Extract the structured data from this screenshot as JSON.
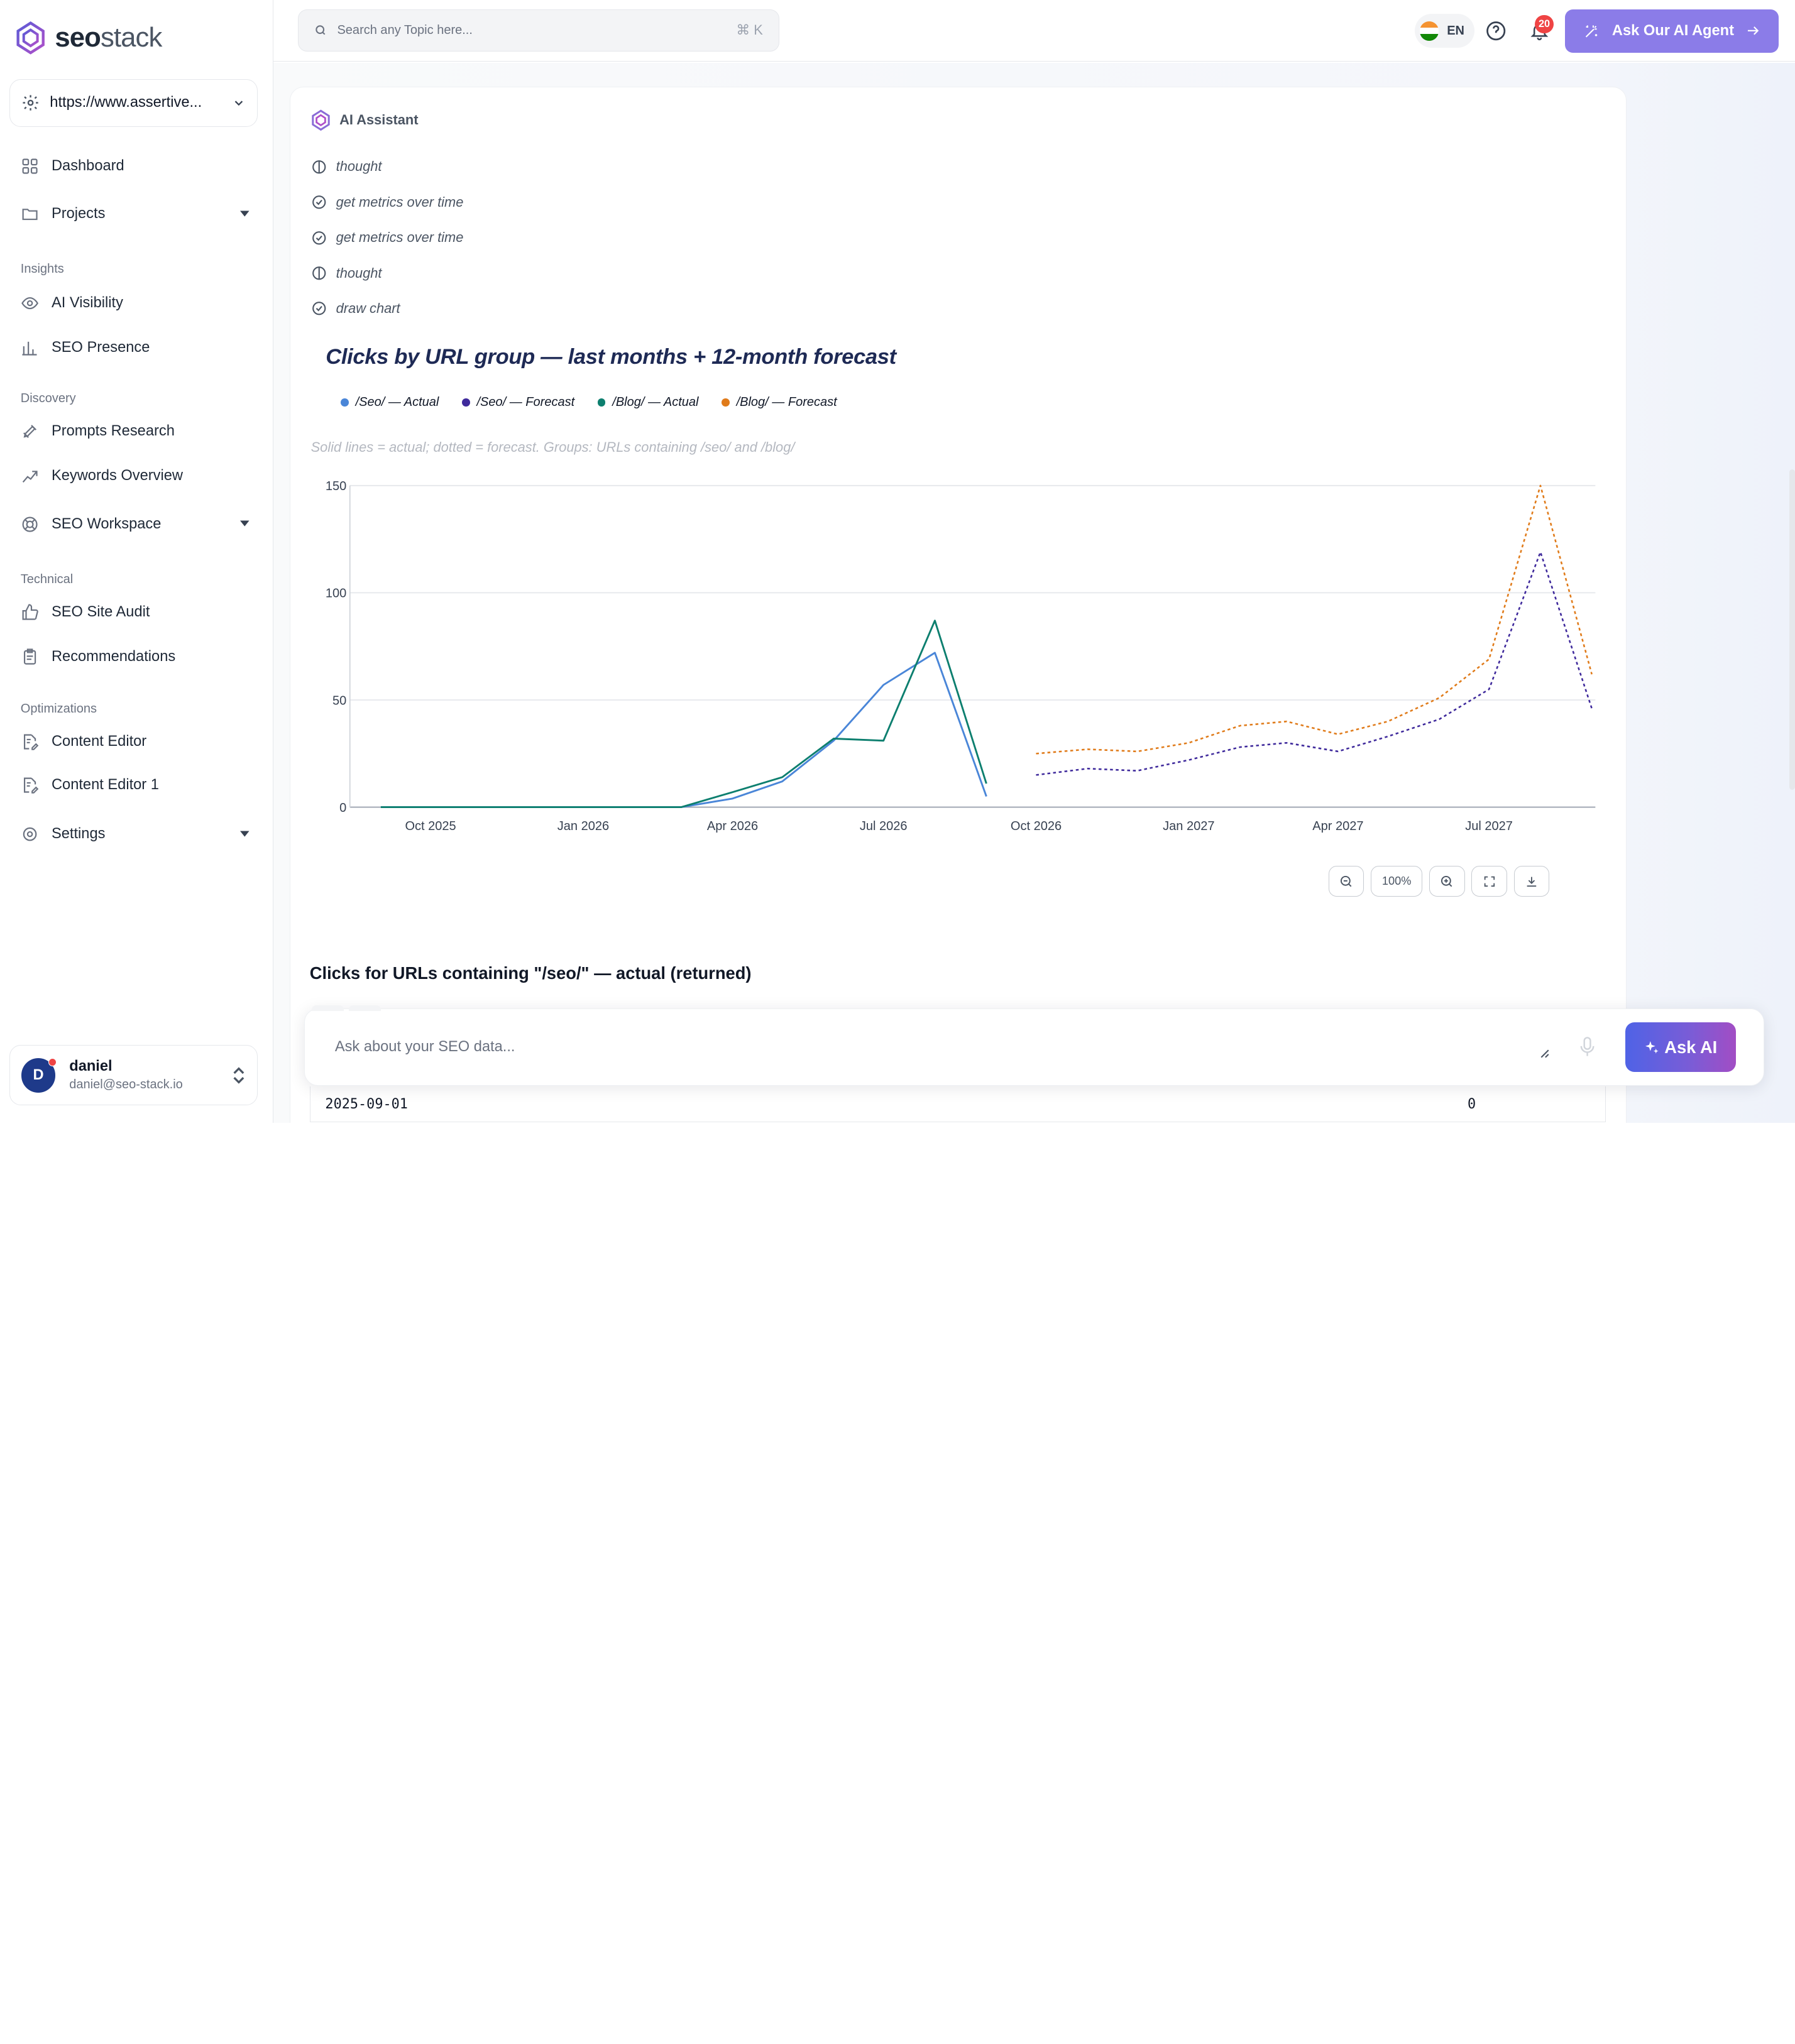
{
  "brand": {
    "name_bold": "seo",
    "name_light": "stack"
  },
  "site_selector": {
    "value": "https://www.assertive..."
  },
  "sidebar": {
    "items": [
      {
        "label": "Dashboard",
        "icon": "grid-icon"
      },
      {
        "label": "Projects",
        "icon": "folder-icon"
      },
      {
        "label": "AI Visibility",
        "icon": "eye-icon"
      },
      {
        "label": "SEO Presence",
        "icon": "bar-chart-icon"
      },
      {
        "label": "Prompts Research",
        "icon": "rocket-icon"
      },
      {
        "label": "Keywords Overview",
        "icon": "trend-icon"
      },
      {
        "label": "SEO Workspace",
        "icon": "lifebuoy-icon"
      },
      {
        "label": "SEO Site Audit",
        "icon": "thumbs-up-icon"
      },
      {
        "label": "Recommendations",
        "icon": "clipboard-icon"
      },
      {
        "label": "Content Editor",
        "icon": "doc-edit-icon"
      },
      {
        "label": "Content Editor 1",
        "icon": "doc-edit-icon"
      },
      {
        "label": "Settings",
        "icon": "gear-icon"
      }
    ],
    "sections": [
      "Insights",
      "Discovery",
      "Technical",
      "Optimizations"
    ]
  },
  "user": {
    "initial": "D",
    "name": "daniel",
    "email": "daniel@seo-stack.io"
  },
  "topbar": {
    "search_placeholder": "Search any Topic here...",
    "search_shortcut": "⌘ K",
    "language": "EN",
    "notification_count": "20",
    "agent_button": "Ask Our AI Agent"
  },
  "assistant": {
    "header": "AI Assistant",
    "steps": [
      {
        "label": "thought",
        "icon": "thought-icon"
      },
      {
        "label": "get metrics over time",
        "icon": "check-circle-icon"
      },
      {
        "label": "get metrics over time",
        "icon": "check-circle-icon"
      },
      {
        "label": "thought",
        "icon": "thought-icon"
      },
      {
        "label": "draw chart",
        "icon": "check-circle-icon"
      }
    ]
  },
  "chart_data": {
    "type": "line",
    "title": "Clicks by URL group — last months + 12-month forecast",
    "note": "Solid lines = actual; dotted = forecast. Groups: URLs containing /seo/ and /blog/",
    "ylim": [
      0,
      150
    ],
    "yticks": [
      0,
      50,
      100,
      150
    ],
    "x_ticks": [
      "Oct 2025",
      "Jan 2026",
      "Apr 2026",
      "Jul 2026",
      "Oct 2026",
      "Jan 2027",
      "Apr 2027",
      "Jul 2027"
    ],
    "x_range": [
      "2025-09-01",
      "2027-08-01"
    ],
    "legend_placement": "top-left",
    "grid": true,
    "series": [
      {
        "name": "/Seo/ — Actual",
        "color": "#4a86d8",
        "style": "solid",
        "points": [
          [
            "2025-09-01",
            0
          ],
          [
            "2025-10-01",
            0
          ],
          [
            "2025-11-01",
            0
          ],
          [
            "2025-12-01",
            0
          ],
          [
            "2026-01-01",
            0
          ],
          [
            "2026-02-01",
            0
          ],
          [
            "2026-03-01",
            0
          ],
          [
            "2026-04-01",
            4
          ],
          [
            "2026-05-01",
            12
          ],
          [
            "2026-06-01",
            31
          ],
          [
            "2026-07-01",
            57
          ],
          [
            "2026-08-01",
            72
          ],
          [
            "2026-09-01",
            5
          ]
        ]
      },
      {
        "name": "/Seo/ — Forecast",
        "color": "#3f2a9c",
        "style": "dotted",
        "points": [
          [
            "2026-10-01",
            15
          ],
          [
            "2026-11-01",
            18
          ],
          [
            "2026-12-01",
            17
          ],
          [
            "2027-01-01",
            22
          ],
          [
            "2027-02-01",
            28
          ],
          [
            "2027-03-01",
            30
          ],
          [
            "2027-04-01",
            26
          ],
          [
            "2027-05-01",
            33
          ],
          [
            "2027-06-01",
            41
          ],
          [
            "2027-07-01",
            55
          ],
          [
            "2027-08-01",
            119
          ],
          [
            "2027-09-01",
            46
          ]
        ]
      },
      {
        "name": "/Blog/ — Actual",
        "color": "#0d7f6f",
        "style": "solid",
        "points": [
          [
            "2025-09-01",
            0
          ],
          [
            "2025-10-01",
            0
          ],
          [
            "2025-11-01",
            0
          ],
          [
            "2025-12-01",
            0
          ],
          [
            "2026-01-01",
            0
          ],
          [
            "2026-02-01",
            0
          ],
          [
            "2026-03-01",
            0
          ],
          [
            "2026-04-01",
            7
          ],
          [
            "2026-05-01",
            14
          ],
          [
            "2026-06-01",
            32
          ],
          [
            "2026-07-01",
            31
          ],
          [
            "2026-08-01",
            87
          ],
          [
            "2026-09-01",
            11
          ]
        ]
      },
      {
        "name": "/Blog/ — Forecast",
        "color": "#e07b1a",
        "style": "dotted",
        "points": [
          [
            "2026-10-01",
            25
          ],
          [
            "2026-11-01",
            27
          ],
          [
            "2026-12-01",
            26
          ],
          [
            "2027-01-01",
            30
          ],
          [
            "2027-02-01",
            38
          ],
          [
            "2027-03-01",
            40
          ],
          [
            "2027-04-01",
            34
          ],
          [
            "2027-05-01",
            40
          ],
          [
            "2027-06-01",
            51
          ],
          [
            "2027-07-01",
            69
          ],
          [
            "2027-08-01",
            150
          ],
          [
            "2027-09-01",
            62
          ]
        ]
      }
    ]
  },
  "chart_controls": {
    "zoom_level": "100%"
  },
  "table": {
    "title": "Clicks for URLs containing \"/seo/\" — actual (returned)",
    "rows": [
      {
        "date": "2025-09-01",
        "clicks": "0"
      }
    ]
  },
  "ask": {
    "placeholder": "Ask about your SEO data...",
    "button": "Ask AI"
  }
}
